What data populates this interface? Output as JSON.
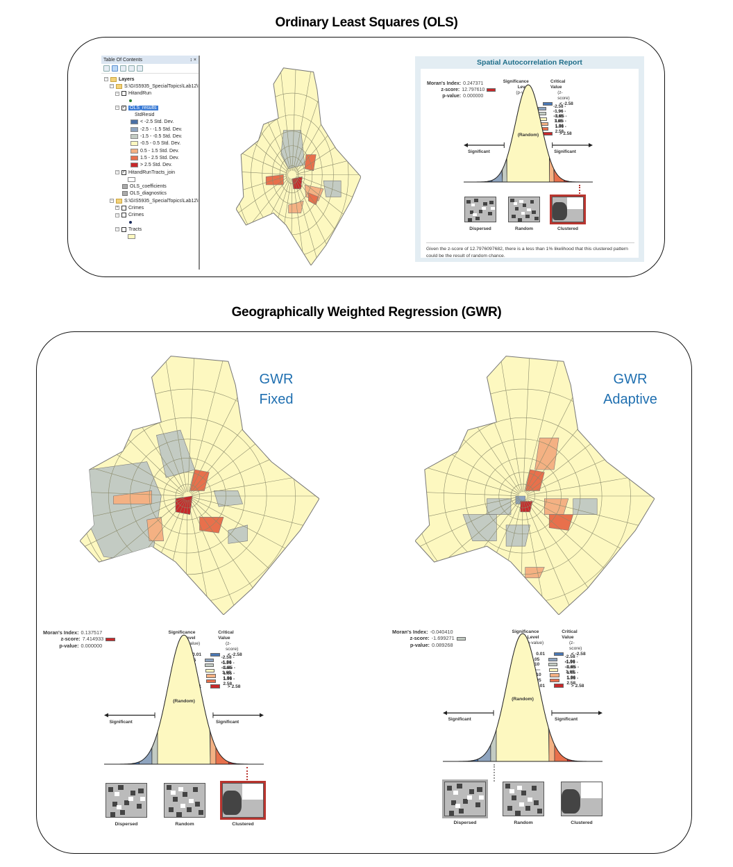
{
  "sections": {
    "ols_title": "Ordinary Least Squares (OLS)",
    "gwr_title": "Geographically Weighted Regression (GWR)"
  },
  "toc": {
    "title": "Table Of Contents",
    "pin": "↕",
    "close": "×",
    "root": "Layers",
    "folder1": "S:\\GIS5935_SpecialTopics\\Lab12\\D",
    "layers1": [
      {
        "name": "HitandRun",
        "checked": false
      },
      {
        "name": "OLS_results",
        "checked": true,
        "selected": true,
        "field": "StdResid"
      }
    ],
    "ols_legend": [
      {
        "label": "< -2.5 Std. Dev.",
        "color": "#4a6fa5"
      },
      {
        "label": "-2.5 - -1.5 Std. Dev.",
        "color": "#8ea4bf"
      },
      {
        "label": "-1.5 - -0.5 Std. Dev.",
        "color": "#c3cbc3"
      },
      {
        "label": "-0.5 - 0.5 Std. Dev.",
        "color": "#fdf8c0"
      },
      {
        "label": "0.5 - 1.5 Std. Dev.",
        "color": "#f4b183"
      },
      {
        "label": "1.5 - 2.5 Std. Dev.",
        "color": "#e8704c"
      },
      {
        "label": "> 2.5 Std. Dev.",
        "color": "#c8282a"
      }
    ],
    "join_layer": "HitandRunTracts_join",
    "tables": [
      "OLS_coefficients",
      "OLS_diagnostics"
    ],
    "folder2": "S:\\GIS5935_SpecialTopics\\Lab12\\D",
    "layers2": [
      "Crimes",
      "Crimes",
      "Tracts"
    ]
  },
  "report": {
    "title": "Spatial Autocorrelation Report",
    "note": "Given the z-score of 12.7976097682, there is a less than 1% likelihood that this clustered pattern could be the result of random chance."
  },
  "stat_labels": {
    "moran": "Moran's Index:",
    "z": "z-score:",
    "p": "p-value:"
  },
  "ols_stats": {
    "moran": "0.247371",
    "z": "12.797610",
    "p": "0.000000",
    "z_color": "#c8282a"
  },
  "gwr_fixed_stats": {
    "moran": "0.137517",
    "z": "7.414933",
    "p": "0.000000",
    "z_color": "#c8282a"
  },
  "gwr_adaptive_stats": {
    "moran": "-0.040410",
    "z": "-1.699271",
    "p": "0.089268",
    "z_color": "#c3cbc3"
  },
  "legend": {
    "sig_header": "Significance Level",
    "sig_sub": "(p-value)",
    "crit_header": "Critical Value",
    "crit_sub": "(z-score)",
    "rows": [
      {
        "p": "0.01",
        "z": "< -2.58",
        "color": "#4a78b5"
      },
      {
        "p": "0.05",
        "z": "-2.58 - -1.96",
        "color": "#8ea4bf"
      },
      {
        "p": "0.10",
        "z": "-1.96 - -1.65",
        "color": "#c3cbc3"
      },
      {
        "p": "---",
        "z": "-1.65 - 1.65",
        "color": "#fdf8c0"
      },
      {
        "p": "0.10",
        "z": "1.65 - 1.96",
        "color": "#f4b183"
      },
      {
        "p": "0.05",
        "z": "1.96 - 2.58",
        "color": "#e8704c"
      },
      {
        "p": "0.01",
        "z": "> 2.58",
        "color": "#c8282a"
      }
    ]
  },
  "curve": {
    "random": "(Random)",
    "significant_left": "Significant",
    "significant_right": "Significant"
  },
  "patterns": {
    "dispersed": "Dispersed",
    "random": "Random",
    "clustered": "Clustered"
  },
  "gwr_fixed_label": {
    "line1": "GWR",
    "line2": "Fixed"
  },
  "gwr_adaptive_label": {
    "line1": "GWR",
    "line2": "Adaptive"
  },
  "colors": {
    "accent_blue": "#1f6fb0",
    "report_title": "#1f6e8a",
    "base_tract": "#fdf8c0"
  }
}
